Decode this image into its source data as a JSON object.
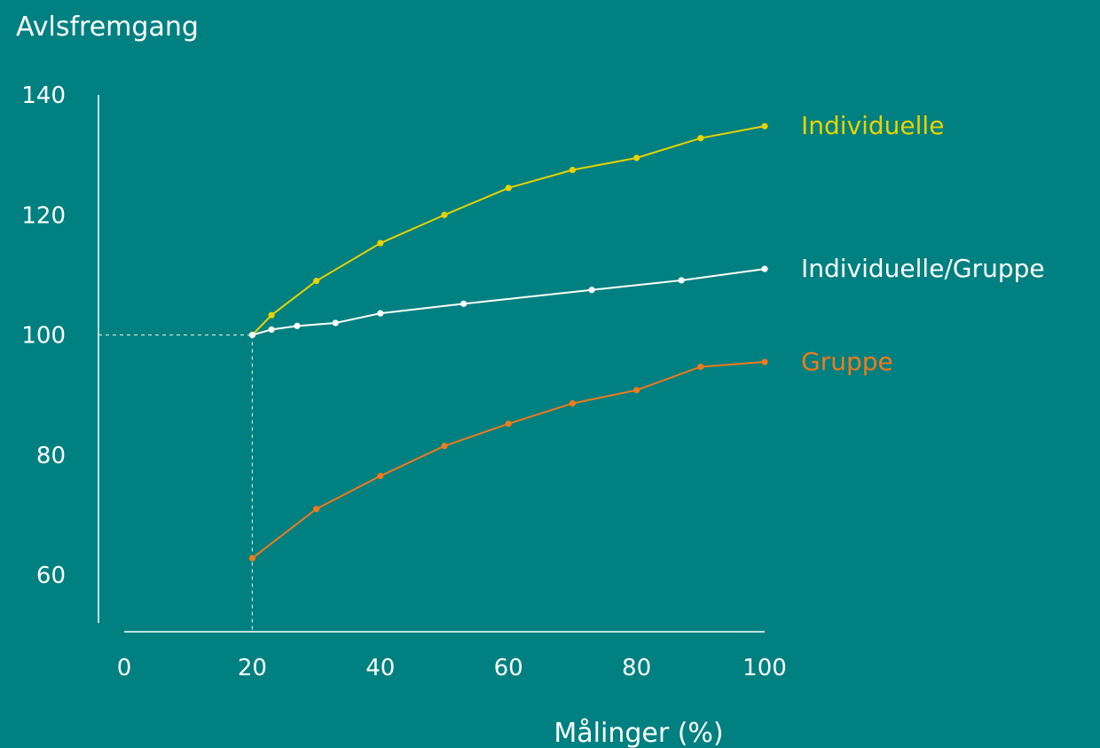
{
  "chart_data": {
    "type": "line",
    "ylabel": "Avlsfremgang",
    "xlabel": "Målinger (%)",
    "xlim": [
      0,
      100
    ],
    "ylim": [
      52,
      140
    ],
    "xticks": [
      "0",
      "20",
      "40",
      "60",
      "80",
      "100"
    ],
    "yticks": [
      "60",
      "80",
      "100",
      "120",
      "140"
    ],
    "reference": {
      "x": 20,
      "y": 100
    },
    "series": [
      {
        "name": "Individuelle",
        "color": "#e8d300",
        "x": [
          20,
          23,
          30,
          40,
          50,
          60,
          70,
          80,
          90,
          100
        ],
        "y": [
          100,
          103.3,
          109,
          115.3,
          120,
          124.5,
          127.5,
          129.5,
          132.8,
          134.8
        ]
      },
      {
        "name": "Individuelle/Gruppe",
        "color": "#ffffff",
        "x": [
          20,
          23,
          27,
          33,
          40,
          53,
          73,
          87,
          100
        ],
        "y": [
          100,
          100.9,
          101.5,
          102,
          103.6,
          105.2,
          107.5,
          109.1,
          111
        ]
      },
      {
        "name": "Gruppe",
        "color": "#f07a1a",
        "x": [
          20,
          30,
          40,
          50,
          60,
          70,
          80,
          90,
          100
        ],
        "y": [
          62.8,
          71,
          76.5,
          81.5,
          85.2,
          88.6,
          90.8,
          94.7,
          95.5
        ]
      }
    ]
  }
}
